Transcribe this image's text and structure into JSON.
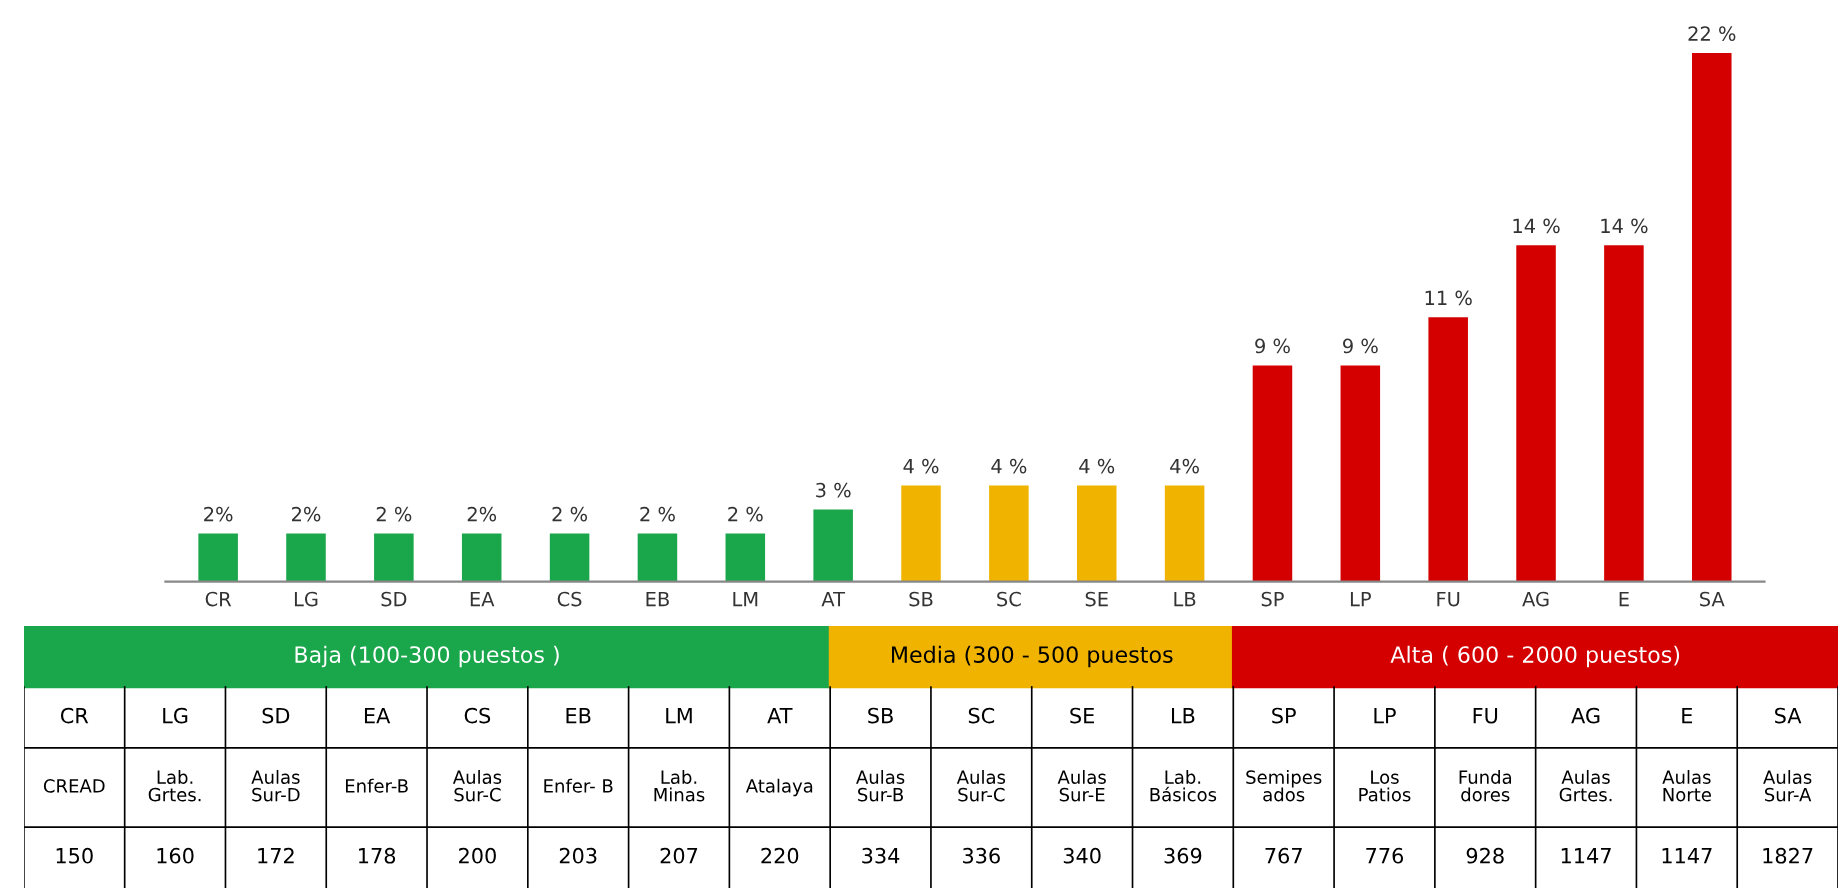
{
  "chart_data": {
    "type": "bar",
    "categories": [
      "CR",
      "LG",
      "SD",
      "EA",
      "CS",
      "EB",
      "LM",
      "AT",
      "SB",
      "SC",
      "SE",
      "LB",
      "SP",
      "LP",
      "FU",
      "AG",
      "E",
      "SA"
    ],
    "values": [
      2,
      2,
      2,
      2,
      2,
      2,
      2,
      3,
      4,
      4,
      4,
      4,
      9,
      9,
      11,
      14,
      14,
      22
    ],
    "value_labels": [
      "2%",
      "2%",
      "2 %",
      "2%",
      "2 %",
      "2 %",
      "2 %",
      "3 %",
      "4 %",
      "4 %",
      "4 %",
      "4%",
      "9 %",
      "9 %",
      "11 %",
      "14 %",
      "14 %",
      "22 %"
    ],
    "colors": [
      "#1aa64a",
      "#1aa64a",
      "#1aa64a",
      "#1aa64a",
      "#1aa64a",
      "#1aa64a",
      "#1aa64a",
      "#1aa64a",
      "#f0b400",
      "#f0b400",
      "#f0b400",
      "#f0b400",
      "#d40000",
      "#d40000",
      "#d40000",
      "#d40000",
      "#d40000",
      "#d40000"
    ],
    "tick_labels": "x",
    "grid": false,
    "annotations": [
      "Baja (100-300 puestos )",
      "Media (300 - 500 puestos",
      "Alta ( 600 - 2000 puestos)",
      "CREAD",
      "Lab.\nGrtes.",
      "Aulas\nSur-D",
      "Enfer-B",
      "Aulas\nSur-C",
      "Enfer- B",
      "Lab.\nMinas",
      "Atalaya",
      "Aulas\nSur-B",
      "Aulas\nSur-C",
      "Aulas\nSur-E",
      "Lab.\nBásicos",
      "Semipes\nados",
      "Los\nPatios",
      "Funda\ndores",
      "Aulas\nGrtes.",
      "Aulas\nNorte",
      "Aulas\nSur-A",
      "150",
      "160",
      "172",
      "178",
      "200",
      "203",
      "207",
      "220",
      "334",
      "336",
      "340",
      "369",
      "767",
      "776",
      "928",
      "1147",
      "1147",
      "1827"
    ]
  }
}
